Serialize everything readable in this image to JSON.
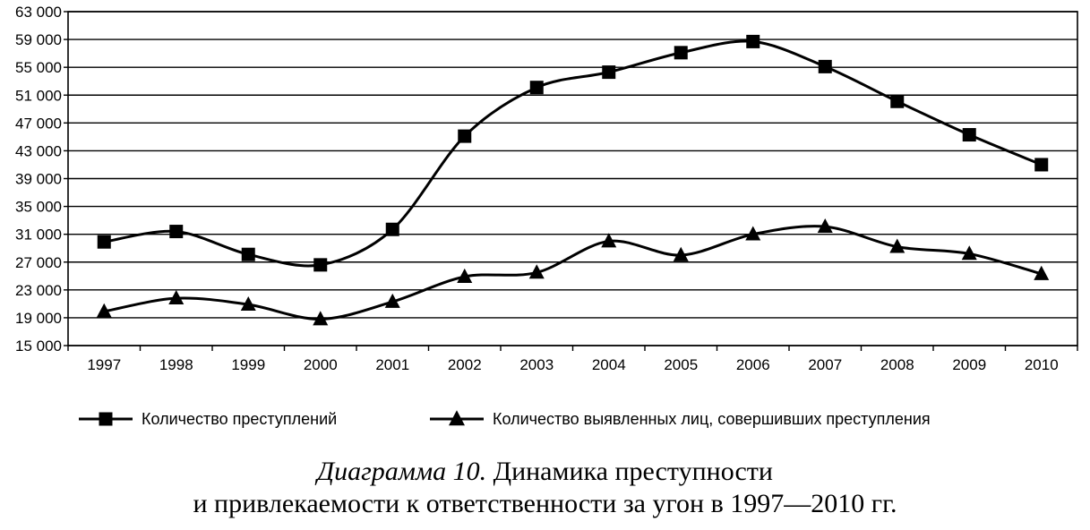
{
  "chart_data": {
    "type": "line",
    "categories": [
      "1997",
      "1998",
      "1999",
      "2000",
      "2001",
      "2002",
      "2003",
      "2004",
      "2005",
      "2006",
      "2007",
      "2008",
      "2009",
      "2010"
    ],
    "y_ticks": [
      15000,
      19000,
      23000,
      27000,
      31000,
      35000,
      39000,
      43000,
      47000,
      51000,
      55000,
      59000,
      63000
    ],
    "y_tick_labels": [
      "15 000",
      "19 000",
      "23 000",
      "27 000",
      "31 000",
      "35 000",
      "39 000",
      "43 000",
      "47 000",
      "51 000",
      "55 000",
      "59 000",
      "63 000"
    ],
    "ylim": [
      15000,
      63000
    ],
    "grid": "horizontal",
    "legend_position": "bottom",
    "series": [
      {
        "name": "Количество преступлений",
        "marker": "square",
        "values": [
          29900,
          31400,
          28100,
          26600,
          31700,
          45100,
          52100,
          54300,
          57100,
          58700,
          55100,
          50100,
          45300,
          41000
        ]
      },
      {
        "name": "Количество выявленных лиц, совершивших преступления",
        "marker": "triangle",
        "values": [
          19900,
          21800,
          20900,
          18800,
          21300,
          24900,
          25500,
          30000,
          28000,
          31000,
          32100,
          29200,
          28200,
          25300
        ]
      }
    ]
  },
  "caption": {
    "line1_lead": "Диаграмма 10.",
    "line1_rest": " Динамика преступности",
    "line2": "и привлекаемости к ответственности за угон в 1997—2010 гг."
  }
}
